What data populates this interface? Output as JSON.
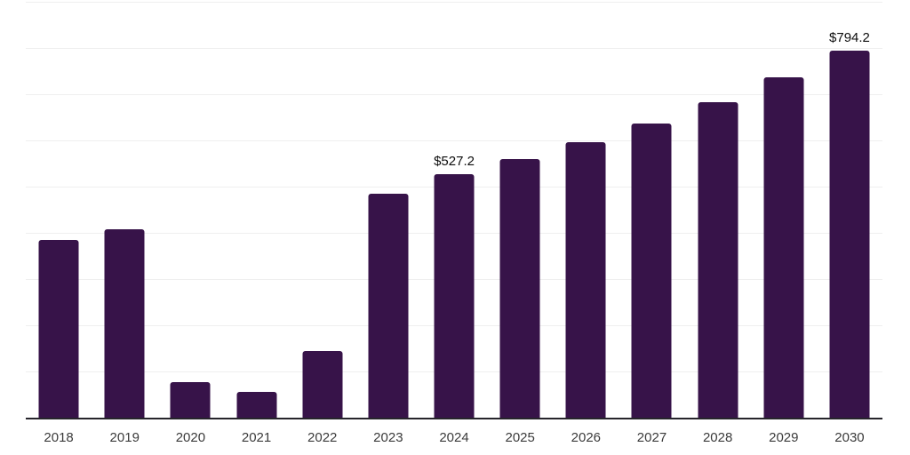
{
  "chart_data": {
    "type": "bar",
    "title": "",
    "xlabel": "",
    "ylabel": "",
    "categories": [
      "2018",
      "2019",
      "2020",
      "2021",
      "2022",
      "2023",
      "2024",
      "2025",
      "2026",
      "2027",
      "2028",
      "2029",
      "2030"
    ],
    "values": [
      385,
      408,
      77,
      56,
      145,
      484,
      527.2,
      560,
      597,
      637,
      683,
      737,
      794.2
    ],
    "value_labels": [
      "",
      "",
      "",
      "",
      "",
      "",
      "$527.2",
      "",
      "",
      "",
      "",
      "",
      "$794.2"
    ],
    "ylim": [
      0,
      900
    ],
    "grid_step": 100,
    "grid": true,
    "legend_position": "none",
    "y_tick_labels_visible": false,
    "colors": {
      "bar": "#371349",
      "gridline": "#efefef",
      "axis": "#26252b",
      "tick_label": "#3b3b3b",
      "data_label": "#0d0d0d",
      "background": "#ffffff"
    }
  }
}
